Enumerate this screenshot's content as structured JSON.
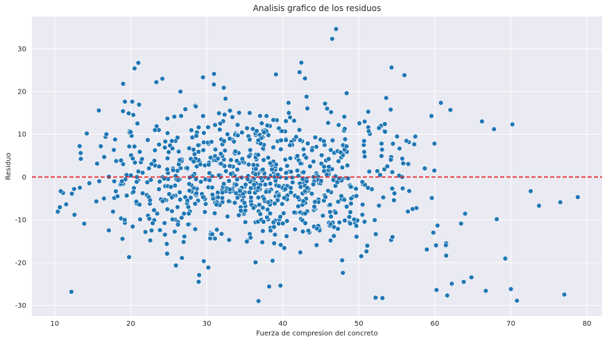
{
  "chart_data": {
    "type": "scatter",
    "title": "Analisis grafico de los residuos",
    "xlabel": "Fuerza de compresion del concreto",
    "ylabel": "Residuo",
    "xlim": [
      7,
      82
    ],
    "ylim": [
      -32.5,
      37.5
    ],
    "xticks": [
      10,
      20,
      30,
      40,
      50,
      60,
      70,
      80
    ],
    "yticks": [
      -30,
      -20,
      -10,
      0,
      10,
      20,
      30
    ],
    "grid": true,
    "background": "#eaeaf2",
    "grid_color": "#ffffff",
    "point_color": "#1f77b4",
    "point_edge": "#ffffff",
    "reference_line": {
      "y": 0,
      "color": "#e31a1c",
      "style": "dashed"
    },
    "n_points": 900,
    "highlighted_points": [
      {
        "x": 46.5,
        "y": 32.3
      },
      {
        "x": 47.0,
        "y": 34.6
      },
      {
        "x": 21.0,
        "y": 26.7
      },
      {
        "x": 20.5,
        "y": 25.4
      },
      {
        "x": 54.3,
        "y": 25.6
      },
      {
        "x": 42.2,
        "y": 24.5
      },
      {
        "x": 56.0,
        "y": 23.8
      },
      {
        "x": 39.1,
        "y": 24.0
      },
      {
        "x": 29.5,
        "y": 23.3
      },
      {
        "x": 19.0,
        "y": 21.8
      },
      {
        "x": 36.8,
        "y": -29.0
      },
      {
        "x": 66.7,
        "y": -26.6
      },
      {
        "x": 70.8,
        "y": -28.9
      },
      {
        "x": 70.0,
        "y": -26.2
      },
      {
        "x": 78.8,
        "y": -4.7
      },
      {
        "x": 76.5,
        "y": -5.9
      },
      {
        "x": 73.7,
        "y": -6.7
      },
      {
        "x": 72.6,
        "y": -3.3
      },
      {
        "x": 10.4,
        "y": -8.1
      },
      {
        "x": 10.8,
        "y": -3.3
      },
      {
        "x": 70.2,
        "y": 12.3
      },
      {
        "x": 66.2,
        "y": 13.0
      },
      {
        "x": 52.2,
        "y": -28.2
      },
      {
        "x": 53.1,
        "y": -28.3
      },
      {
        "x": 38.2,
        "y": -25.6
      },
      {
        "x": 48.4,
        "y": 19.6
      },
      {
        "x": 40.2,
        "y": -16.6
      },
      {
        "x": 29.0,
        "y": -22.9
      }
    ]
  }
}
